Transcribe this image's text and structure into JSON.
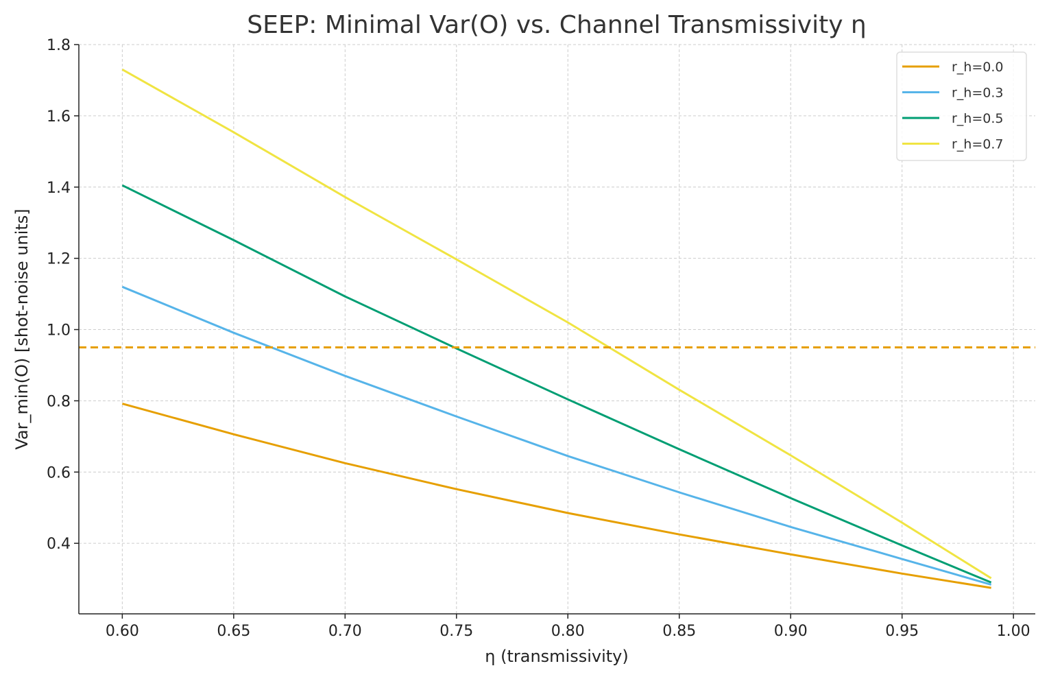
{
  "chart_data": {
    "type": "line",
    "title": "SEEP: Minimal Var(O) vs. Channel Transmissivity η",
    "xlabel": "η (transmissivity)",
    "ylabel": "Var_min(O) [shot-noise units]",
    "xlim": [
      0.5805,
      1.0098
    ],
    "ylim": [
      0.202,
      1.8
    ],
    "grid": true,
    "legend_position": "top-right",
    "xticks": [
      "0.60",
      "0.65",
      "0.70",
      "0.75",
      "0.80",
      "0.85",
      "0.90",
      "0.95",
      "1.00"
    ],
    "yticks": [
      "0.4",
      "0.6",
      "0.8",
      "1.0",
      "1.2",
      "1.4",
      "1.6",
      "1.8"
    ],
    "x": [
      0.6,
      0.65,
      0.7,
      0.75,
      0.8,
      0.85,
      0.9,
      0.95,
      0.99
    ],
    "series": [
      {
        "name": "r_h=0.0",
        "color": "#E69F00",
        "values": [
          0.792,
          0.706,
          0.625,
          0.552,
          0.485,
          0.425,
          0.369,
          0.315,
          0.275
        ]
      },
      {
        "name": "r_h=0.3",
        "color": "#56B4E9",
        "values": [
          1.12,
          0.991,
          0.87,
          0.756,
          0.645,
          0.543,
          0.446,
          0.356,
          0.284
        ]
      },
      {
        "name": "r_h=0.5",
        "color": "#009E73",
        "values": [
          1.405,
          1.251,
          1.093,
          0.947,
          0.804,
          0.664,
          0.527,
          0.394,
          0.29
        ]
      },
      {
        "name": "r_h=0.7",
        "color": "#F0E442",
        "values": [
          1.73,
          1.554,
          1.372,
          1.197,
          1.02,
          0.831,
          0.647,
          0.458,
          0.302
        ]
      }
    ],
    "reference_line": {
      "y": 0.95,
      "color": "#E69F00",
      "style": "dashed"
    }
  }
}
